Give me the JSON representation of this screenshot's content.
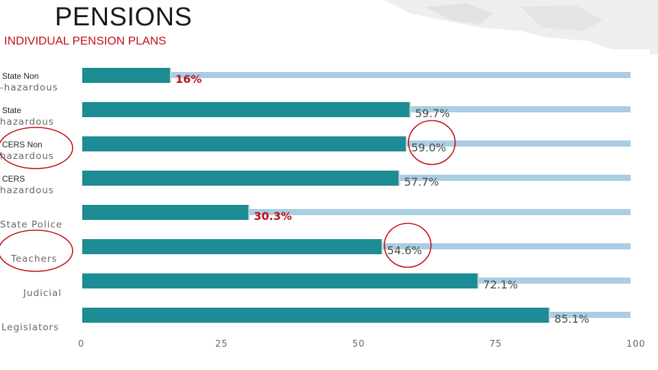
{
  "title": "PENSIONS",
  "subtitle": "INDIVIDUAL PENSION PLANS",
  "colors": {
    "bar": "#1e8c94",
    "track": "#a9cde2",
    "title_text": "#1a1a1a",
    "subtitle_text": "#c0101a",
    "highlight_label": "#c0101a",
    "default_label": "#4a4a4a",
    "annotation_circle": "#c0101a"
  },
  "chart_data": {
    "type": "bar",
    "orientation": "horizontal",
    "categories_display": [
      [
        "State Non",
        "-hazardous"
      ],
      [
        "State",
        "hazardous"
      ],
      [
        "CERS Non",
        "hazardous"
      ],
      [
        "CERS",
        "hazardous"
      ],
      [
        "",
        "State Police"
      ],
      [
        "",
        "Teachers"
      ],
      [
        "",
        "Judicial"
      ],
      [
        "",
        "Legislators"
      ]
    ],
    "values": [
      16,
      59.7,
      59.0,
      57.7,
      30.3,
      54.6,
      72.1,
      85.1
    ],
    "data_labels": [
      "16%",
      "59.7%",
      "59.0%",
      "57.7%",
      "30.3%",
      "54.6%",
      "72.1%",
      "85.1%"
    ],
    "highlighted_labels": [
      true,
      false,
      false,
      false,
      true,
      false,
      false,
      false
    ],
    "circled_bars": [
      2,
      5
    ],
    "circled_categories": [
      2,
      5
    ],
    "xlim": [
      0,
      100
    ],
    "xticks": [
      "0",
      "25",
      "50",
      "75",
      "100"
    ],
    "grid": false,
    "legend": "none",
    "track_to_max": true
  }
}
